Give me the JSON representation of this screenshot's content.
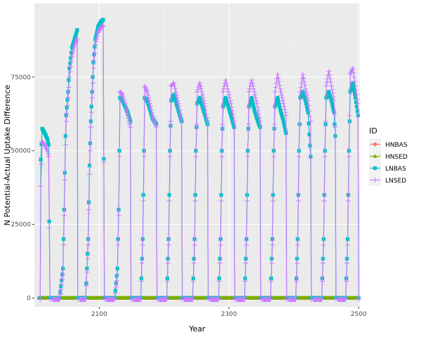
{
  "chart_data": {
    "type": "line",
    "xlabel": "Year",
    "ylabel": "N Potential-Actual Uptake Difference",
    "xlim": [
      2000,
      2502
    ],
    "ylim": [
      -3000,
      100000
    ],
    "x_ticks": [
      2100,
      2300,
      2500
    ],
    "x_tick_labels": [
      "2100",
      "2300",
      "2500"
    ],
    "y_ticks": [
      0,
      25000,
      50000,
      75000
    ],
    "y_tick_labels": [
      "0",
      "25000",
      "50000",
      "75000"
    ],
    "grid": true,
    "legend_position": "right",
    "legend_title": "ID",
    "series": [
      {
        "name": "HNBAS",
        "color": "#F8766D",
        "marker": "circle",
        "points": [
          [
            2007,
            0
          ],
          [
            2497,
            0
          ]
        ]
      },
      {
        "name": "HNSED",
        "color": "#7CAE00",
        "marker": "triangle",
        "points": [
          [
            2007,
            0
          ],
          [
            2497,
            0
          ]
        ]
      },
      {
        "name": "LNBAS",
        "color": "#00BFC4",
        "marker": "square",
        "segments": [
          [
            [
              2009,
              0
            ],
            [
              2010,
              47000
            ],
            [
              2012,
              57500
            ],
            [
              2016,
              56000
            ],
            [
              2020,
              54000
            ],
            [
              2022,
              52000
            ],
            [
              2024,
              0
            ]
          ],
          [
            [
              2028,
              0
            ],
            [
              2039,
              0
            ],
            [
              2044,
              10000
            ],
            [
              2046,
              30000
            ],
            [
              2048,
              55000
            ],
            [
              2049,
              62000
            ],
            [
              2052,
              70000
            ],
            [
              2054,
              78000
            ],
            [
              2058,
              85000
            ],
            [
              2062,
              88000
            ],
            [
              2066,
              91000
            ],
            [
              2067,
              0
            ]
          ],
          [
            [
              2070,
              0
            ],
            [
              2079,
              0
            ],
            [
              2083,
              20000
            ],
            [
              2085,
              45000
            ],
            [
              2087,
              60000
            ],
            [
              2089,
              70000
            ],
            [
              2091,
              80000
            ],
            [
              2094,
              88000
            ],
            [
              2098,
              92000
            ],
            [
              2103,
              94000
            ],
            [
              2106,
              94500
            ],
            [
              2108,
              0
            ]
          ],
          [
            [
              2111,
              0
            ],
            [
              2124,
              0
            ],
            [
              2128,
              10000
            ],
            [
              2130,
              30000
            ],
            [
              2131,
              50000
            ],
            [
              2132,
              68000
            ],
            [
              2136,
              67000
            ],
            [
              2140,
              65000
            ],
            [
              2144,
              63000
            ],
            [
              2148,
              60000
            ],
            [
              2149,
              0
            ]
          ],
          [
            [
              2152,
              0
            ],
            [
              2164,
              0
            ],
            [
              2167,
              20000
            ],
            [
              2169,
              50000
            ],
            [
              2170,
              68000
            ],
            [
              2174,
              67000
            ],
            [
              2178,
              64000
            ],
            [
              2182,
              61000
            ],
            [
              2188,
              59000
            ],
            [
              2189,
              0
            ]
          ],
          [
            [
              2192,
              0
            ],
            [
              2204,
              0
            ],
            [
              2207,
              20000
            ],
            [
              2209,
              50000
            ],
            [
              2211,
              67000
            ],
            [
              2215,
              69000
            ],
            [
              2219,
              66000
            ],
            [
              2223,
              63000
            ],
            [
              2227,
              60000
            ],
            [
              2228,
              0
            ]
          ],
          [
            [
              2231,
              0
            ],
            [
              2244,
              0
            ],
            [
              2247,
              20000
            ],
            [
              2249,
              50000
            ],
            [
              2251,
              66000
            ],
            [
              2255,
              68000
            ],
            [
              2259,
              65000
            ],
            [
              2263,
              62000
            ],
            [
              2267,
              59000
            ],
            [
              2268,
              0
            ]
          ],
          [
            [
              2271,
              0
            ],
            [
              2284,
              0
            ],
            [
              2287,
              20000
            ],
            [
              2289,
              50000
            ],
            [
              2291,
              65000
            ],
            [
              2295,
              68000
            ],
            [
              2299,
              65000
            ],
            [
              2303,
              62000
            ],
            [
              2308,
              58000
            ],
            [
              2309,
              0
            ]
          ],
          [
            [
              2312,
              0
            ],
            [
              2324,
              0
            ],
            [
              2327,
              20000
            ],
            [
              2329,
              50000
            ],
            [
              2331,
              65000
            ],
            [
              2335,
              68000
            ],
            [
              2339,
              64000
            ],
            [
              2343,
              61000
            ],
            [
              2348,
              58000
            ],
            [
              2349,
              0
            ]
          ],
          [
            [
              2352,
              0
            ],
            [
              2364,
              0
            ],
            [
              2367,
              20000
            ],
            [
              2369,
              50000
            ],
            [
              2371,
              65000
            ],
            [
              2375,
              68000
            ],
            [
              2379,
              64000
            ],
            [
              2383,
              61000
            ],
            [
              2388,
              56000
            ],
            [
              2389,
              0
            ]
          ],
          [
            [
              2392,
              0
            ],
            [
              2403,
              0
            ],
            [
              2406,
              20000
            ],
            [
              2408,
              50000
            ],
            [
              2410,
              68000
            ],
            [
              2414,
              70000
            ],
            [
              2418,
              67000
            ],
            [
              2422,
              63000
            ],
            [
              2426,
              48000
            ],
            [
              2427,
              0
            ]
          ],
          [
            [
              2430,
              0
            ],
            [
              2443,
              0
            ],
            [
              2446,
              20000
            ],
            [
              2448,
              50000
            ],
            [
              2450,
              68000
            ],
            [
              2454,
              70000
            ],
            [
              2458,
              67000
            ],
            [
              2462,
              63000
            ],
            [
              2464,
              55000
            ],
            [
              2465,
              0
            ]
          ],
          [
            [
              2468,
              0
            ],
            [
              2480,
              0
            ],
            [
              2483,
              20000
            ],
            [
              2485,
              50000
            ],
            [
              2487,
              70000
            ],
            [
              2491,
              73000
            ],
            [
              2495,
              68000
            ],
            [
              2499,
              62000
            ],
            [
              2500,
              0
            ]
          ]
        ]
      },
      {
        "name": "LNSED",
        "color": "#C77CFF",
        "marker": "plus",
        "segments": [
          [
            [
              2009,
              -500
            ],
            [
              2010,
              38000
            ],
            [
              2012,
              53000
            ],
            [
              2016,
              52000
            ],
            [
              2020,
              50000
            ],
            [
              2022,
              48000
            ],
            [
              2024,
              -500
            ]
          ],
          [
            [
              2028,
              -500
            ],
            [
              2039,
              -500
            ],
            [
              2044,
              8000
            ],
            [
              2046,
              28000
            ],
            [
              2048,
              52000
            ],
            [
              2049,
              60000
            ],
            [
              2052,
              68000
            ],
            [
              2054,
              75000
            ],
            [
              2058,
              82000
            ],
            [
              2062,
              86000
            ],
            [
              2066,
              88000
            ],
            [
              2067,
              -500
            ]
          ],
          [
            [
              2070,
              -500
            ],
            [
              2079,
              -500
            ],
            [
              2083,
              18000
            ],
            [
              2085,
              42000
            ],
            [
              2087,
              58000
            ],
            [
              2089,
              68000
            ],
            [
              2091,
              78000
            ],
            [
              2094,
              86000
            ],
            [
              2098,
              90000
            ],
            [
              2103,
              92000
            ],
            [
              2106,
              92500
            ],
            [
              2108,
              -500
            ]
          ],
          [
            [
              2111,
              -500
            ],
            [
              2124,
              -500
            ],
            [
              2128,
              8000
            ],
            [
              2130,
              28000
            ],
            [
              2131,
              48000
            ],
            [
              2132,
              70000
            ],
            [
              2136,
              69000
            ],
            [
              2140,
              66000
            ],
            [
              2144,
              62000
            ],
            [
              2148,
              58000
            ],
            [
              2149,
              -500
            ]
          ],
          [
            [
              2152,
              -500
            ],
            [
              2164,
              -500
            ],
            [
              2167,
              18000
            ],
            [
              2169,
              48000
            ],
            [
              2170,
              72000
            ],
            [
              2174,
              70000
            ],
            [
              2178,
              66000
            ],
            [
              2182,
              62000
            ],
            [
              2188,
              58000
            ],
            [
              2189,
              -500
            ]
          ],
          [
            [
              2192,
              -500
            ],
            [
              2204,
              -500
            ],
            [
              2207,
              18000
            ],
            [
              2209,
              48000
            ],
            [
              2211,
              72000
            ],
            [
              2215,
              73000
            ],
            [
              2219,
              69000
            ],
            [
              2223,
              65000
            ],
            [
              2227,
              60000
            ],
            [
              2228,
              -500
            ]
          ],
          [
            [
              2231,
              -500
            ],
            [
              2244,
              -500
            ],
            [
              2247,
              18000
            ],
            [
              2249,
              48000
            ],
            [
              2251,
              70000
            ],
            [
              2255,
              73000
            ],
            [
              2259,
              69000
            ],
            [
              2263,
              65000
            ],
            [
              2267,
              60000
            ],
            [
              2268,
              -500
            ]
          ],
          [
            [
              2271,
              -500
            ],
            [
              2284,
              -500
            ],
            [
              2287,
              18000
            ],
            [
              2289,
              48000
            ],
            [
              2291,
              70000
            ],
            [
              2295,
              74000
            ],
            [
              2299,
              70000
            ],
            [
              2303,
              66000
            ],
            [
              2308,
              60000
            ],
            [
              2309,
              -500
            ]
          ],
          [
            [
              2312,
              -500
            ],
            [
              2324,
              -500
            ],
            [
              2327,
              18000
            ],
            [
              2329,
              48000
            ],
            [
              2331,
              70000
            ],
            [
              2335,
              74000
            ],
            [
              2339,
              70000
            ],
            [
              2343,
              66000
            ],
            [
              2348,
              60000
            ],
            [
              2349,
              -500
            ]
          ],
          [
            [
              2352,
              -500
            ],
            [
              2364,
              -500
            ],
            [
              2367,
              18000
            ],
            [
              2369,
              48000
            ],
            [
              2371,
              70000
            ],
            [
              2375,
              76000
            ],
            [
              2379,
              71000
            ],
            [
              2383,
              67000
            ],
            [
              2388,
              62000
            ],
            [
              2389,
              -500
            ]
          ],
          [
            [
              2392,
              -500
            ],
            [
              2403,
              -500
            ],
            [
              2406,
              18000
            ],
            [
              2408,
              48000
            ],
            [
              2410,
              70000
            ],
            [
              2414,
              76000
            ],
            [
              2418,
              71000
            ],
            [
              2422,
              67000
            ],
            [
              2426,
              60000
            ],
            [
              2427,
              -500
            ]
          ],
          [
            [
              2430,
              -500
            ],
            [
              2443,
              -500
            ],
            [
              2446,
              18000
            ],
            [
              2448,
              48000
            ],
            [
              2450,
              72000
            ],
            [
              2454,
              77000
            ],
            [
              2458,
              72000
            ],
            [
              2462,
              67000
            ],
            [
              2464,
              58000
            ],
            [
              2465,
              -500
            ]
          ],
          [
            [
              2468,
              -500
            ],
            [
              2480,
              -500
            ],
            [
              2483,
              18000
            ],
            [
              2485,
              48000
            ],
            [
              2487,
              76000
            ],
            [
              2491,
              78000
            ],
            [
              2495,
              72000
            ],
            [
              2499,
              66000
            ],
            [
              2500,
              -500
            ]
          ]
        ]
      }
    ]
  }
}
